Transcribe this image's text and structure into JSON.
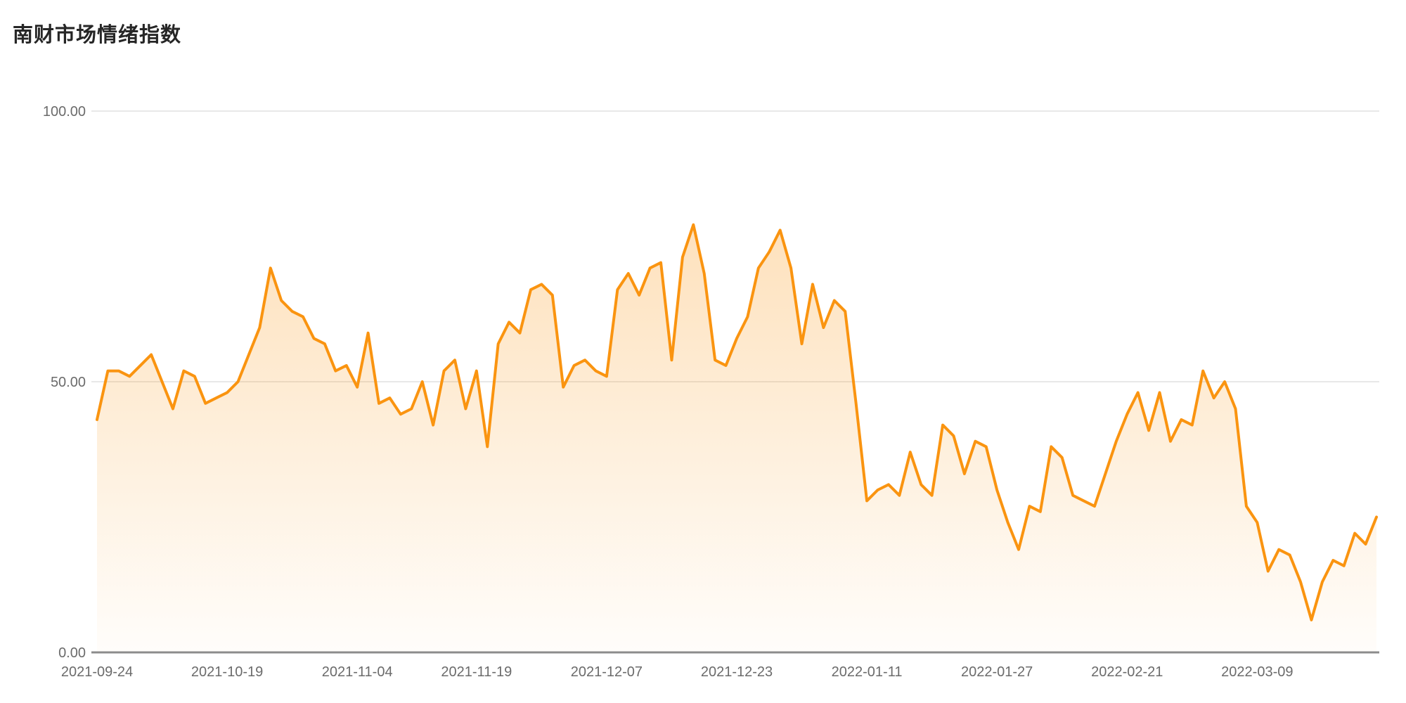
{
  "page": {
    "background_color": "#ffffff"
  },
  "chart_data": {
    "type": "area",
    "title": "南财市场情绪指数",
    "title_color": "#262626",
    "line_color": "#FA9410",
    "area_top_color": "rgba(250,148,16,0.28)",
    "area_bottom_color": "rgba(250,148,16,0.02)",
    "axis_label_color": "#6b6b6b",
    "gridline_color": "#e8e8e8",
    "axis_line_color": "#8c8c8c",
    "grid": true,
    "legend": "none",
    "ylim": [
      0,
      100
    ],
    "y_ticks": [
      0,
      50,
      100
    ],
    "y_tick_labels": [
      "0.00",
      "50.00",
      "100.00"
    ],
    "x_tick_labels": [
      "2021-09-24",
      "2021-10-19",
      "2021-11-04",
      "2021-11-19",
      "2021-12-07",
      "2021-12-23",
      "2022-01-11",
      "2022-01-27",
      "2022-02-21",
      "2022-03-09"
    ],
    "x_tick_indices": [
      0,
      12,
      24,
      35,
      47,
      59,
      71,
      83,
      95,
      107
    ],
    "values": [
      43,
      52,
      52,
      51,
      53,
      55,
      50,
      45,
      52,
      51,
      46,
      47,
      48,
      50,
      55,
      60,
      71,
      65,
      63,
      62,
      58,
      57,
      52,
      53,
      49,
      59,
      46,
      47,
      44,
      45,
      50,
      42,
      52,
      54,
      45,
      52,
      38,
      57,
      61,
      59,
      67,
      68,
      66,
      49,
      53,
      54,
      52,
      51,
      67,
      70,
      66,
      71,
      72,
      54,
      73,
      79,
      70,
      54,
      53,
      58,
      62,
      71,
      74,
      78,
      71,
      57,
      68,
      60,
      65,
      63,
      46,
      28,
      30,
      31,
      29,
      37,
      31,
      29,
      42,
      40,
      33,
      39,
      38,
      30,
      24,
      19,
      27,
      26,
      38,
      36,
      29,
      28,
      27,
      33,
      39,
      44,
      48,
      41,
      48,
      39,
      43,
      42,
      52,
      47,
      50,
      45,
      27,
      24,
      15,
      19,
      18,
      13,
      6,
      13,
      17,
      16,
      22,
      20,
      25
    ]
  }
}
